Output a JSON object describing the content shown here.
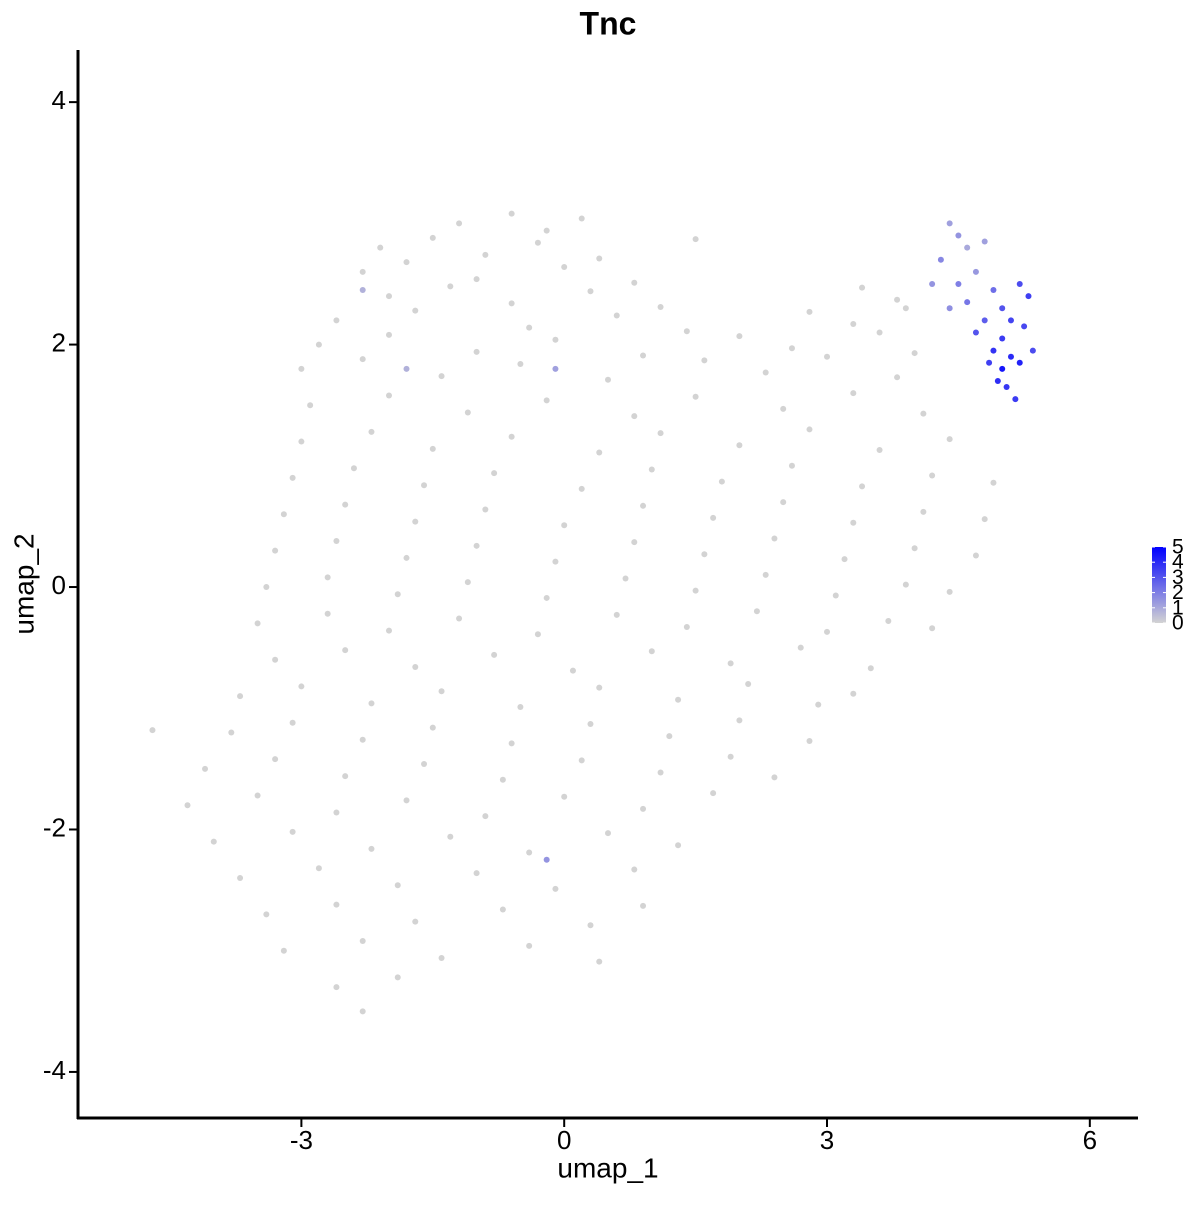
{
  "chart_data": {
    "type": "scatter",
    "title": "Tnc",
    "x_label": "umap_1",
    "y_label": "umap_2",
    "x": [
      -1.2,
      -0.6,
      -0.2,
      0.2,
      -2.1,
      -1.5,
      -0.9,
      -0.3,
      0.4,
      1.5,
      -2.3,
      -1.8,
      -1.0,
      0.0,
      0.8,
      -2.0,
      -1.3,
      -0.6,
      0.3,
      1.1,
      3.4,
      3.8,
      -2.6,
      -1.7,
      -0.4,
      0.6,
      1.4,
      2.8,
      3.3,
      3.9,
      -2.8,
      -2.0,
      -1.0,
      -0.1,
      0.9,
      2.0,
      2.6,
      3.6,
      4.0,
      -3.0,
      -2.3,
      -1.4,
      -0.5,
      0.5,
      1.6,
      2.3,
      3.0,
      3.8,
      -2.9,
      -2.0,
      -1.1,
      -0.2,
      0.8,
      1.5,
      2.5,
      3.3,
      4.1,
      -3.0,
      -2.2,
      -1.5,
      -0.6,
      0.4,
      1.1,
      2.0,
      2.8,
      3.6,
      4.4,
      -3.1,
      -2.4,
      -1.6,
      -0.8,
      0.2,
      1.0,
      1.8,
      2.6,
      3.4,
      4.2,
      4.9,
      -3.2,
      -2.5,
      -1.7,
      -0.9,
      0.0,
      0.9,
      1.7,
      2.5,
      3.3,
      4.1,
      4.8,
      -3.3,
      -2.6,
      -1.8,
      -1.0,
      -0.1,
      0.8,
      1.6,
      2.4,
      3.2,
      4.0,
      4.7,
      -3.4,
      -2.7,
      -1.9,
      -1.1,
      -0.2,
      0.7,
      1.5,
      2.3,
      3.1,
      3.9,
      4.4,
      -3.5,
      -2.7,
      -2.0,
      -1.2,
      -0.3,
      0.6,
      1.4,
      2.2,
      3.0,
      3.7,
      4.2,
      -3.3,
      -2.5,
      -1.7,
      -0.8,
      0.1,
      1.0,
      1.9,
      2.7,
      3.5,
      -3.7,
      -3.0,
      -2.2,
      -1.4,
      -0.5,
      0.4,
      1.3,
      2.1,
      2.9,
      3.3,
      -3.8,
      -3.1,
      -2.3,
      -1.5,
      -0.6,
      0.3,
      1.2,
      2.0,
      2.8,
      -4.7,
      -4.1,
      -3.3,
      -2.5,
      -1.6,
      -0.7,
      0.2,
      1.1,
      1.9,
      2.4,
      -4.3,
      -3.5,
      -2.6,
      -1.8,
      -0.9,
      0.0,
      0.9,
      1.7,
      -4.0,
      -3.1,
      -2.2,
      -1.3,
      -0.4,
      0.5,
      1.3,
      -3.7,
      -2.8,
      -1.9,
      -1.0,
      -0.1,
      0.8,
      -3.4,
      -2.6,
      -1.7,
      -0.7,
      0.3,
      0.9,
      -3.2,
      -2.3,
      -1.4,
      -0.4,
      0.4,
      -2.6,
      -1.9,
      -2.3,
      4.4,
      4.5,
      4.6,
      4.3,
      4.7,
      4.8,
      4.5,
      4.2,
      4.9,
      4.6,
      5.0,
      5.2,
      5.3,
      4.8,
      5.1,
      4.7,
      5.0,
      5.25,
      4.9,
      5.1,
      5.35,
      4.85,
      5.0,
      5.2,
      4.95,
      5.05,
      5.15,
      4.4,
      -0.1,
      -0.2,
      -1.8,
      -2.3
    ],
    "y": [
      3.0,
      3.08,
      2.94,
      3.04,
      2.8,
      2.88,
      2.74,
      2.84,
      2.71,
      2.87,
      2.6,
      2.68,
      2.54,
      2.64,
      2.51,
      2.4,
      2.48,
      2.34,
      2.44,
      2.31,
      2.47,
      2.37,
      2.2,
      2.28,
      2.14,
      2.24,
      2.11,
      2.27,
      2.17,
      2.3,
      2.0,
      2.08,
      1.94,
      2.04,
      1.91,
      2.07,
      1.97,
      2.1,
      1.93,
      1.8,
      1.88,
      1.74,
      1.84,
      1.71,
      1.87,
      1.77,
      1.9,
      1.73,
      1.5,
      1.58,
      1.44,
      1.54,
      1.41,
      1.57,
      1.47,
      1.6,
      1.43,
      1.2,
      1.28,
      1.14,
      1.24,
      1.11,
      1.27,
      1.17,
      1.3,
      1.13,
      1.22,
      0.9,
      0.98,
      0.84,
      0.94,
      0.81,
      0.97,
      0.87,
      1.0,
      0.83,
      0.92,
      0.86,
      0.6,
      0.68,
      0.54,
      0.64,
      0.51,
      0.67,
      0.57,
      0.7,
      0.53,
      0.62,
      0.56,
      0.3,
      0.38,
      0.24,
      0.34,
      0.21,
      0.37,
      0.27,
      0.4,
      0.23,
      0.32,
      0.26,
      0.0,
      0.08,
      -0.06,
      0.04,
      -0.09,
      0.07,
      -0.03,
      0.1,
      -0.07,
      0.02,
      -0.04,
      -0.3,
      -0.22,
      -0.36,
      -0.26,
      -0.39,
      -0.23,
      -0.33,
      -0.2,
      -0.37,
      -0.28,
      -0.34,
      -0.6,
      -0.52,
      -0.66,
      -0.56,
      -0.69,
      -0.53,
      -0.63,
      -0.5,
      -0.67,
      -0.9,
      -0.82,
      -0.96,
      -0.86,
      -0.99,
      -0.83,
      -0.93,
      -0.8,
      -0.97,
      -0.88,
      -1.2,
      -1.12,
      -1.26,
      -1.16,
      -1.29,
      -1.13,
      -1.23,
      -1.1,
      -1.27,
      -1.18,
      -1.5,
      -1.42,
      -1.56,
      -1.46,
      -1.59,
      -1.43,
      -1.53,
      -1.4,
      -1.57,
      -1.8,
      -1.72,
      -1.86,
      -1.76,
      -1.89,
      -1.73,
      -1.83,
      -1.7,
      -2.1,
      -2.02,
      -2.16,
      -2.06,
      -2.19,
      -2.03,
      -2.13,
      -2.4,
      -2.32,
      -2.46,
      -2.36,
      -2.49,
      -2.33,
      -2.7,
      -2.62,
      -2.76,
      -2.66,
      -2.79,
      -2.63,
      -3.0,
      -2.92,
      -3.06,
      -2.96,
      -3.09,
      -3.3,
      -3.22,
      -3.5,
      3.0,
      2.9,
      2.8,
      2.7,
      2.6,
      2.85,
      2.5,
      2.5,
      2.45,
      2.35,
      2.3,
      2.5,
      2.4,
      2.2,
      2.2,
      2.1,
      2.05,
      2.15,
      1.95,
      1.9,
      1.95,
      1.85,
      1.8,
      1.85,
      1.7,
      1.65,
      1.55,
      2.3,
      1.8,
      -2.25,
      1.8,
      2.45
    ],
    "values": [
      0,
      0,
      0,
      0,
      0,
      0,
      0,
      0,
      0,
      0,
      0,
      0,
      0,
      0,
      0,
      0,
      0,
      0,
      0,
      0,
      0,
      0,
      0,
      0,
      0,
      0,
      0,
      0,
      0,
      0,
      0,
      0,
      0,
      0,
      0,
      0,
      0,
      0,
      0,
      0,
      0,
      0,
      0,
      0,
      0,
      0,
      0,
      0,
      0,
      0,
      0,
      0,
      0,
      0,
      0,
      0,
      0,
      0,
      0,
      0,
      0,
      0,
      0,
      0,
      0,
      0,
      0,
      0,
      0,
      0,
      0,
      0,
      0,
      0,
      0,
      0,
      0,
      0,
      0,
      0,
      0,
      0,
      0,
      0,
      0,
      0,
      0,
      0,
      0,
      0,
      0,
      0,
      0,
      0,
      0,
      0,
      0,
      0,
      0,
      0,
      0,
      0,
      0,
      0,
      0,
      0,
      0,
      0,
      0,
      0,
      0,
      0,
      0,
      0,
      0,
      0,
      0,
      0,
      0,
      0,
      0,
      0,
      0,
      0,
      0,
      0,
      0,
      0,
      0,
      0,
      0,
      0,
      0,
      0,
      0,
      0,
      0,
      0,
      0,
      0,
      0,
      0,
      0,
      0,
      0,
      0,
      0,
      0,
      0,
      0,
      0,
      0,
      0,
      0,
      0,
      0,
      0,
      0,
      0,
      0,
      0,
      0,
      0,
      0,
      0,
      0,
      0,
      0,
      0,
      0,
      0,
      0,
      0,
      0,
      0,
      0,
      0,
      0,
      0,
      0,
      0,
      0,
      0,
      0,
      0,
      0,
      0,
      0,
      0,
      0,
      0,
      0,
      0,
      0,
      0,
      1.2,
      1.5,
      1.0,
      1.8,
      1.4,
      1.2,
      2.0,
      1.5,
      2.4,
      2.2,
      3.0,
      3.2,
      3.5,
      2.8,
      3.4,
      3.0,
      3.6,
      3.3,
      3.8,
      4.0,
      3.2,
      3.5,
      4.5,
      4.2,
      3.9,
      3.7,
      3.6,
      1.6,
      1.2,
      1.5,
      0.8,
      0.8
    ],
    "xlim": [
      -5.55,
      6.55
    ],
    "ylim": [
      -4.38,
      4.43
    ],
    "xticks": [
      -3,
      0,
      3,
      6
    ],
    "yticks": [
      -4,
      -2,
      0,
      2,
      4
    ],
    "color_low": "#d3d3d3",
    "color_high": "#0000ff",
    "colorbar_lim": [
      0,
      5
    ],
    "colorbar_ticks": [
      0,
      1,
      2,
      3,
      4,
      5
    ]
  }
}
